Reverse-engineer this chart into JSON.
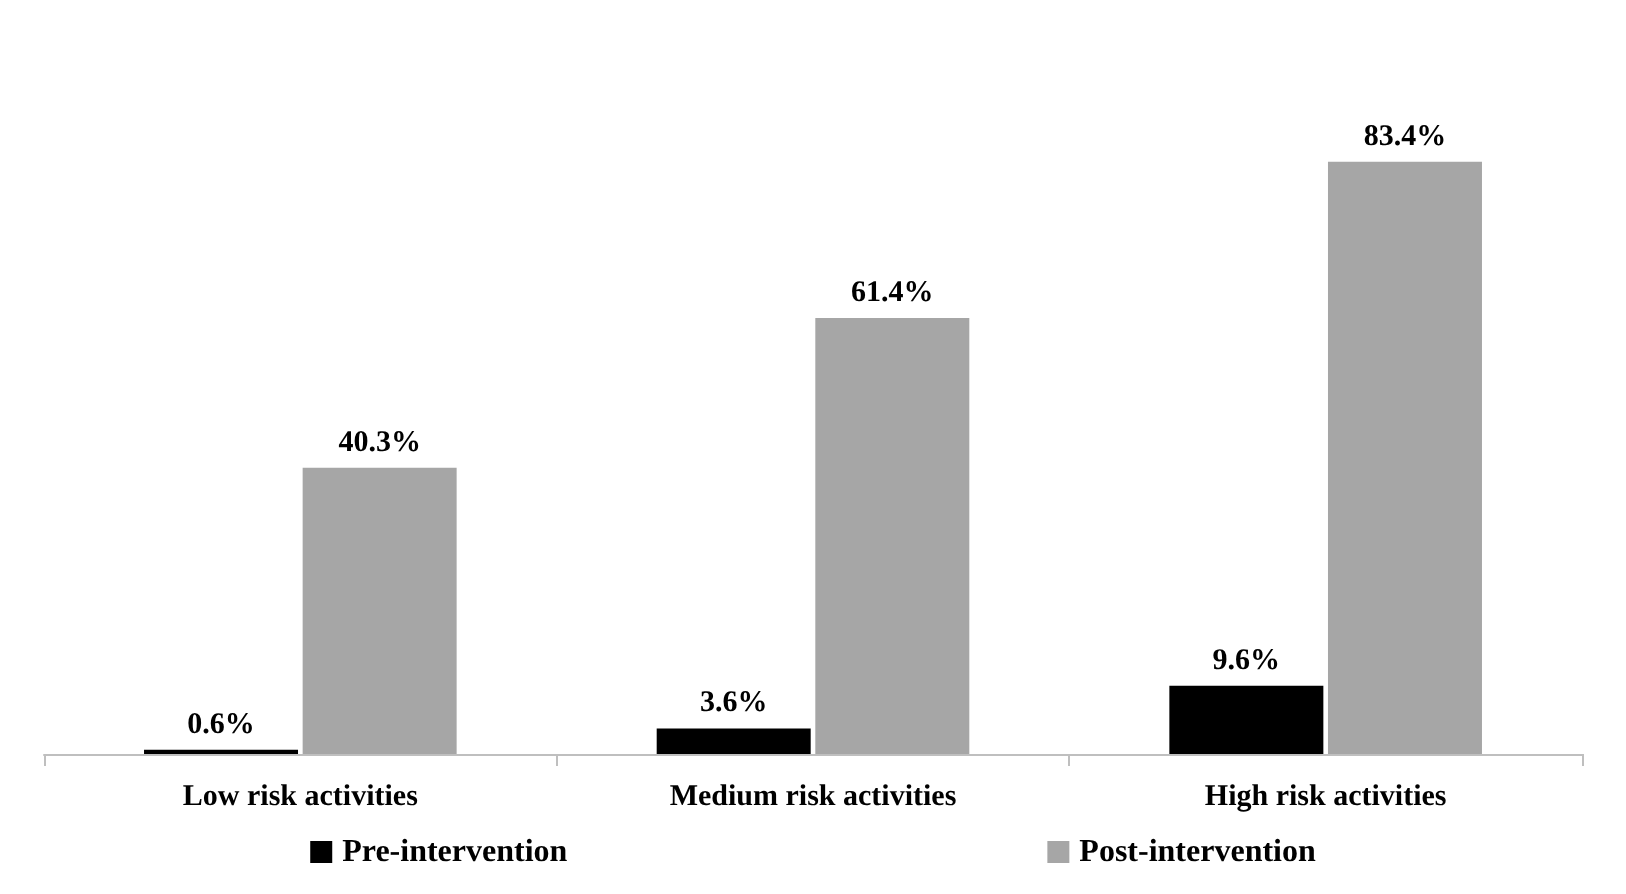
{
  "chart_data": {
    "type": "bar",
    "categories": [
      "Low risk activities",
      "Medium risk activities",
      "High risk activities"
    ],
    "series": [
      {
        "name": "Pre-intervention",
        "color": "#000000",
        "values": [
          0.6,
          3.6,
          9.6
        ],
        "value_labels": [
          "0.6%",
          "3.6%",
          "9.6%"
        ]
      },
      {
        "name": "Post-intervention",
        "color": "#a6a6a6",
        "values": [
          40.3,
          61.4,
          83.4
        ],
        "value_labels": [
          "40.3%",
          "61.4%",
          "83.4%"
        ]
      }
    ],
    "legend": "bottom"
  }
}
